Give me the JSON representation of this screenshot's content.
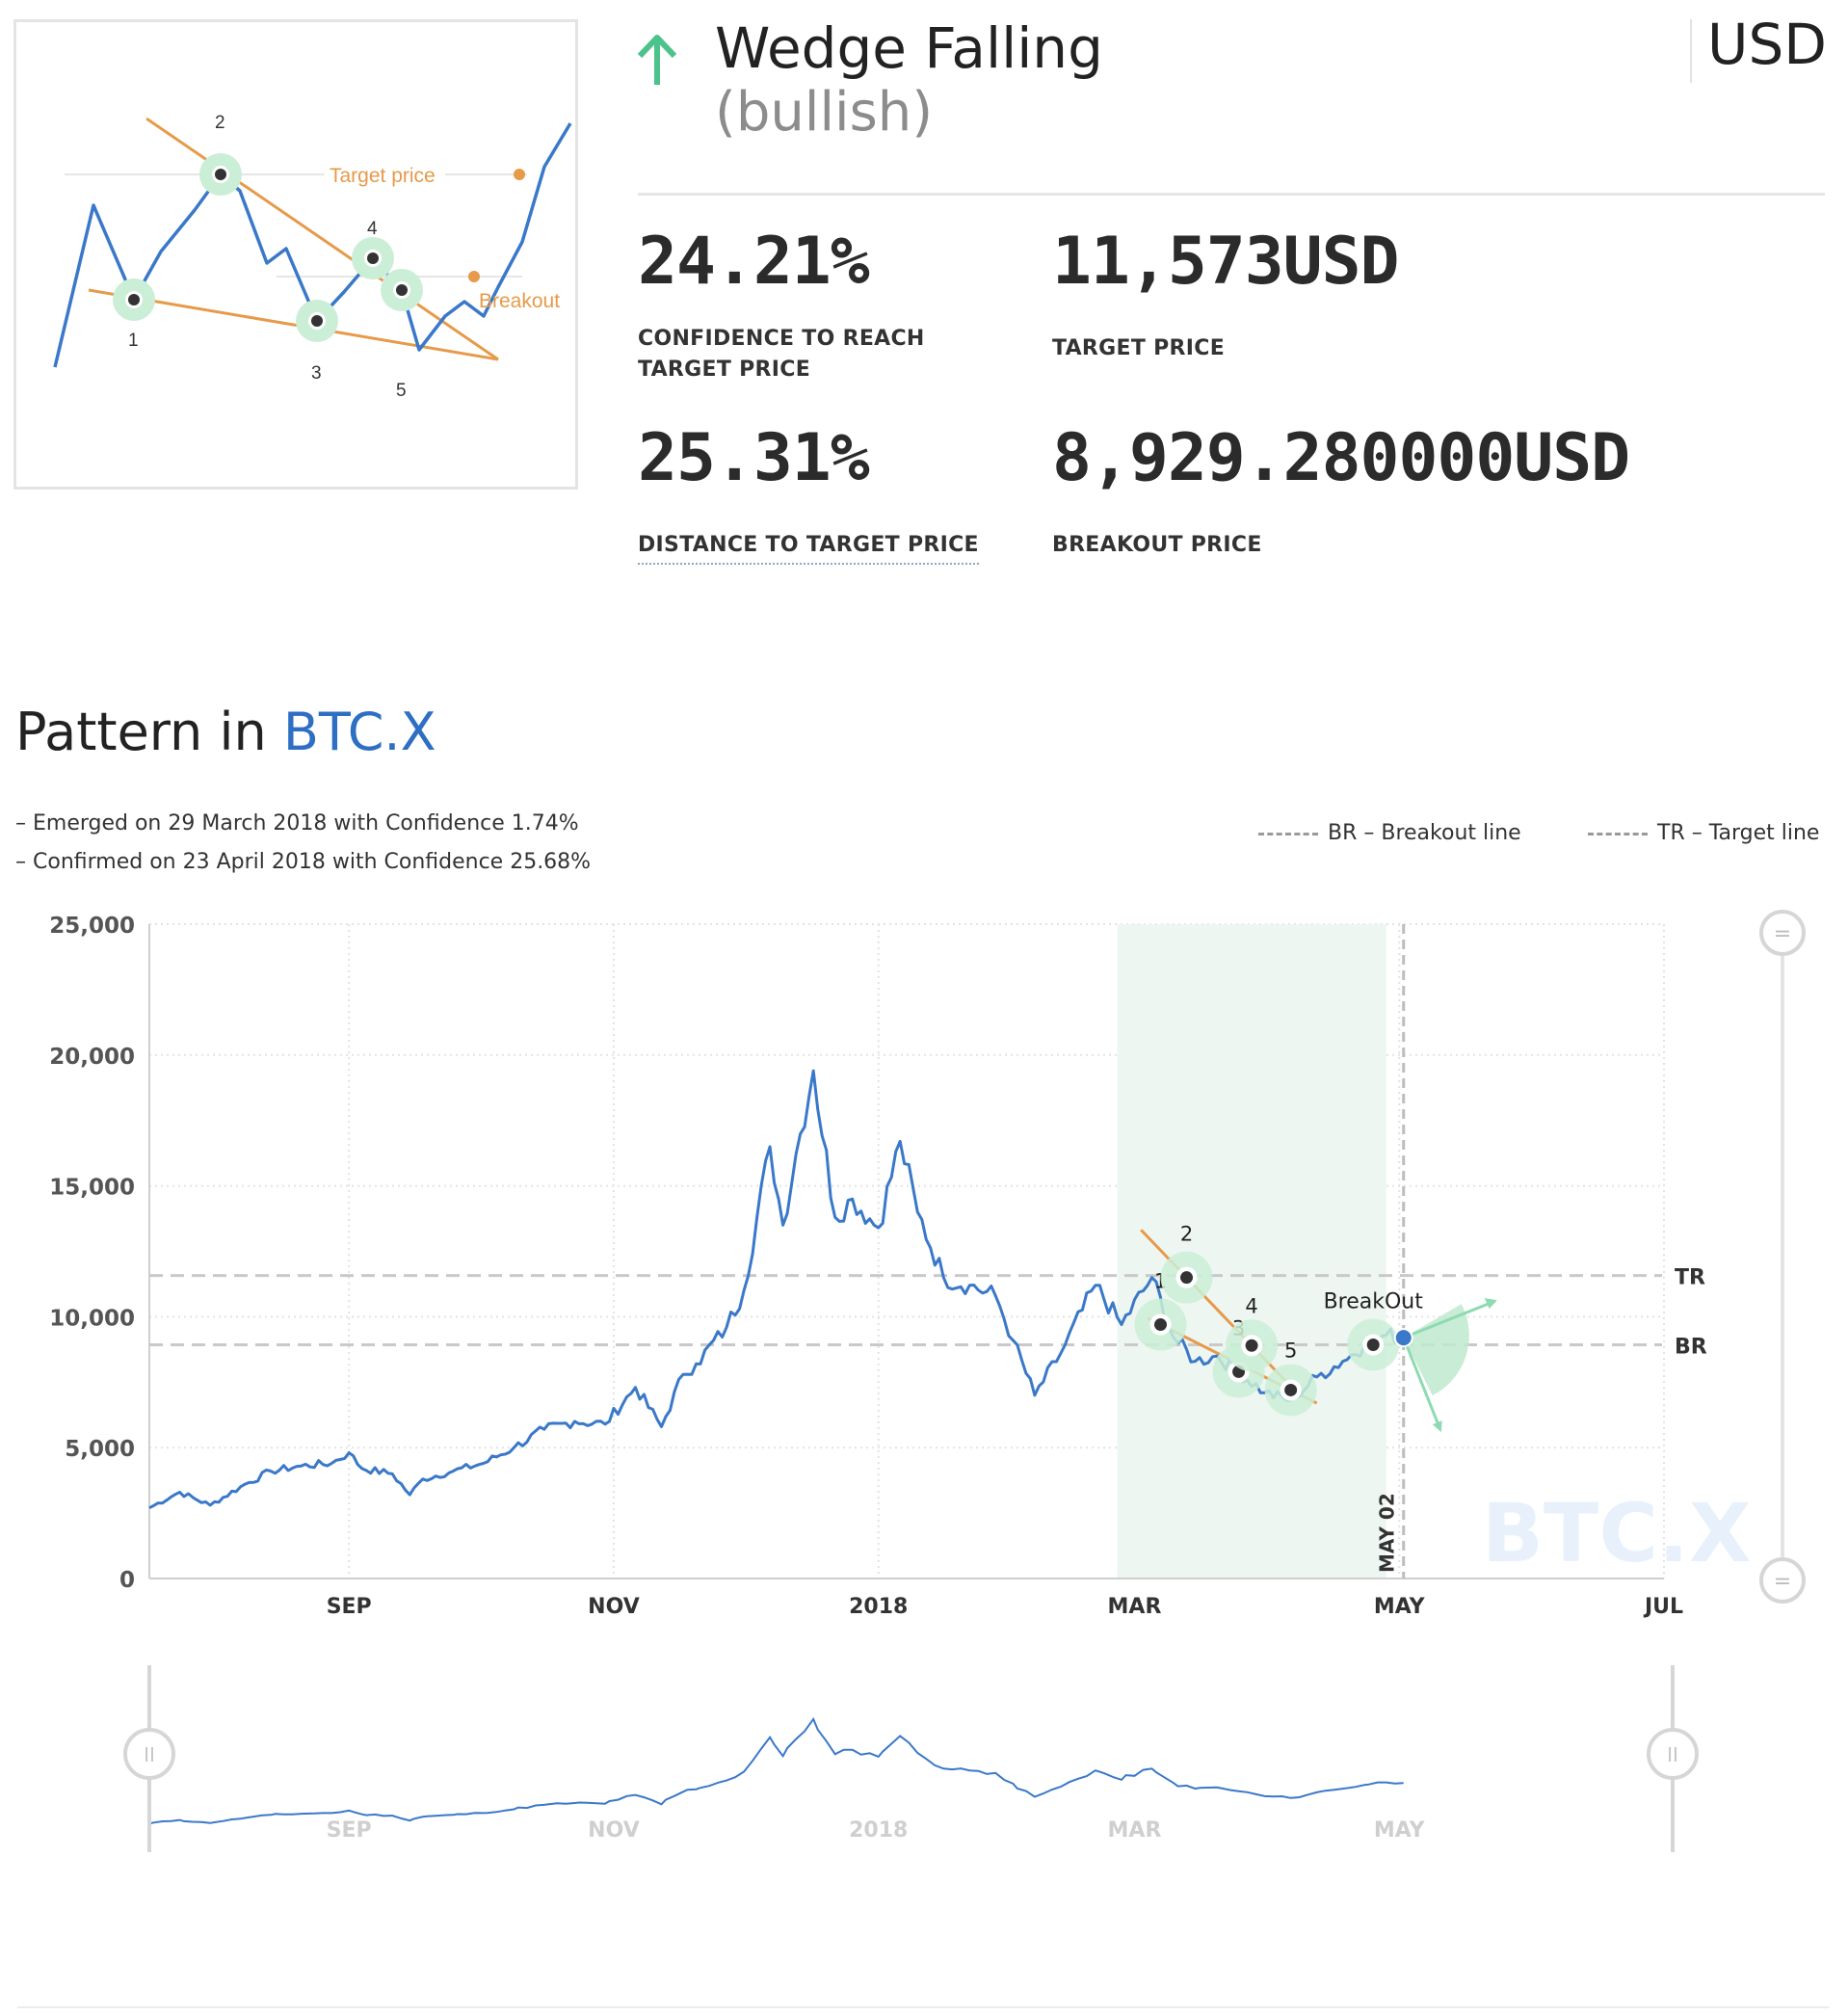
{
  "pattern": {
    "name": "Wedge Falling",
    "direction": "(bullish)",
    "trend_icon": "arrow-up-icon",
    "currency": "USD"
  },
  "thumbnail": {
    "target_label": "Target price",
    "breakout_label": "Breakout",
    "points": [
      "1",
      "2",
      "3",
      "4",
      "5"
    ]
  },
  "stats": {
    "confidence": {
      "value": "24.21%",
      "label_line1": "CONFIDENCE TO REACH",
      "label_line2": "TARGET PRICE"
    },
    "target": {
      "value": "11,573USD",
      "label": "TARGET PRICE"
    },
    "distance": {
      "value": "25.31%",
      "label": "DISTANCE TO TARGET PRICE"
    },
    "breakout": {
      "value": "8,929.280000USD",
      "label": "BREAKOUT PRICE"
    }
  },
  "section": {
    "title_prefix": "Pattern in ",
    "symbol": "BTC.X",
    "emerged": "– Emerged on 29 March 2018 with Confidence 1.74%",
    "confirmed": "– Confirmed on 23 April 2018 with Confidence 25.68%",
    "legend_br": "BR – Breakout line",
    "legend_tr": "TR – Target line"
  },
  "colors": {
    "price_line": "#3a78c9",
    "wedge_lines": "#e69a4a",
    "highlight_band": "#eef6f1",
    "pivot_halo": "#cbeed7",
    "ref_lines": "#c9c9c9"
  },
  "chart_data": {
    "type": "line",
    "title": "",
    "xlabel": "",
    "ylabel": "",
    "ylim": [
      0,
      25000
    ],
    "yticks": [
      "25,000",
      "20,000",
      "15,000",
      "10,000",
      "5,000",
      "0"
    ],
    "x_ticks": [
      "SEP",
      "NOV",
      "2018",
      "MAR",
      "MAY",
      "JUL"
    ],
    "grid": true,
    "watermark": "BTC.X",
    "series": [
      {
        "values_x": [
          "2017-07-17",
          "2017-07-24",
          "2017-07-31",
          "2017-08-07",
          "2017-08-14",
          "2017-08-21",
          "2017-08-28",
          "2017-09-01",
          "2017-09-04",
          "2017-09-11",
          "2017-09-15",
          "2017-09-18",
          "2017-09-25",
          "2017-10-02",
          "2017-10-09",
          "2017-10-16",
          "2017-10-23",
          "2017-10-30",
          "2017-11-06",
          "2017-11-12",
          "2017-11-17",
          "2017-11-20",
          "2017-11-27",
          "2017-12-01",
          "2017-12-07",
          "2017-12-10",
          "2017-12-13",
          "2017-12-17",
          "2017-12-22",
          "2017-12-26",
          "2018-01-01",
          "2018-01-06",
          "2018-01-10",
          "2018-01-16",
          "2018-01-22",
          "2018-01-28",
          "2018-02-01",
          "2018-02-06",
          "2018-02-12",
          "2018-02-20",
          "2018-02-26",
          "2018-03-05",
          "2018-03-10",
          "2018-03-15",
          "2018-03-20",
          "2018-03-25",
          "2018-03-31",
          "2018-04-06",
          "2018-04-12",
          "2018-04-18",
          "2018-04-23",
          "2018-04-28",
          "2018-05-02"
        ],
        "values": [
          2700,
          3300,
          2800,
          3500,
          4100,
          4300,
          4400,
          4800,
          4200,
          4000,
          3200,
          3800,
          4100,
          4400,
          5000,
          5700,
          6000,
          5900,
          7300,
          5800,
          7800,
          8200,
          9600,
          11000,
          16500,
          13500,
          16200,
          19400,
          13800,
          14500,
          13400,
          16700,
          14000,
          11500,
          11200,
          10800,
          9100,
          7000,
          8600,
          11200,
          9700,
          11500,
          9200,
          8300,
          8500,
          7900,
          7100,
          6800,
          7700,
          8300,
          8900,
          9300,
          9200
        ]
      }
    ],
    "pattern_points": [
      {
        "label": "1",
        "date": "2018-03-07",
        "value": 9700
      },
      {
        "label": "2",
        "date": "2018-03-13",
        "value": 11500
      },
      {
        "label": "3",
        "date": "2018-03-25",
        "value": 7900
      },
      {
        "label": "4",
        "date": "2018-03-28",
        "value": 8900
      },
      {
        "label": "5",
        "date": "2018-04-06",
        "value": 7200
      }
    ],
    "breakout_point": {
      "label": "BreakOut",
      "date": "2018-04-25",
      "value": 8929.28
    },
    "target_line": {
      "label": "TR",
      "value": 11573
    },
    "breakout_line": {
      "label": "BR",
      "value": 8929.28
    },
    "vertical_marker": {
      "label": "MAY 02",
      "date": "2018-05-02"
    },
    "highlight_range": [
      "2018-02-25",
      "2018-04-28"
    ]
  },
  "mini_chart": {
    "x_ticks": [
      "SEP",
      "NOV",
      "2018",
      "MAR",
      "MAY"
    ]
  }
}
